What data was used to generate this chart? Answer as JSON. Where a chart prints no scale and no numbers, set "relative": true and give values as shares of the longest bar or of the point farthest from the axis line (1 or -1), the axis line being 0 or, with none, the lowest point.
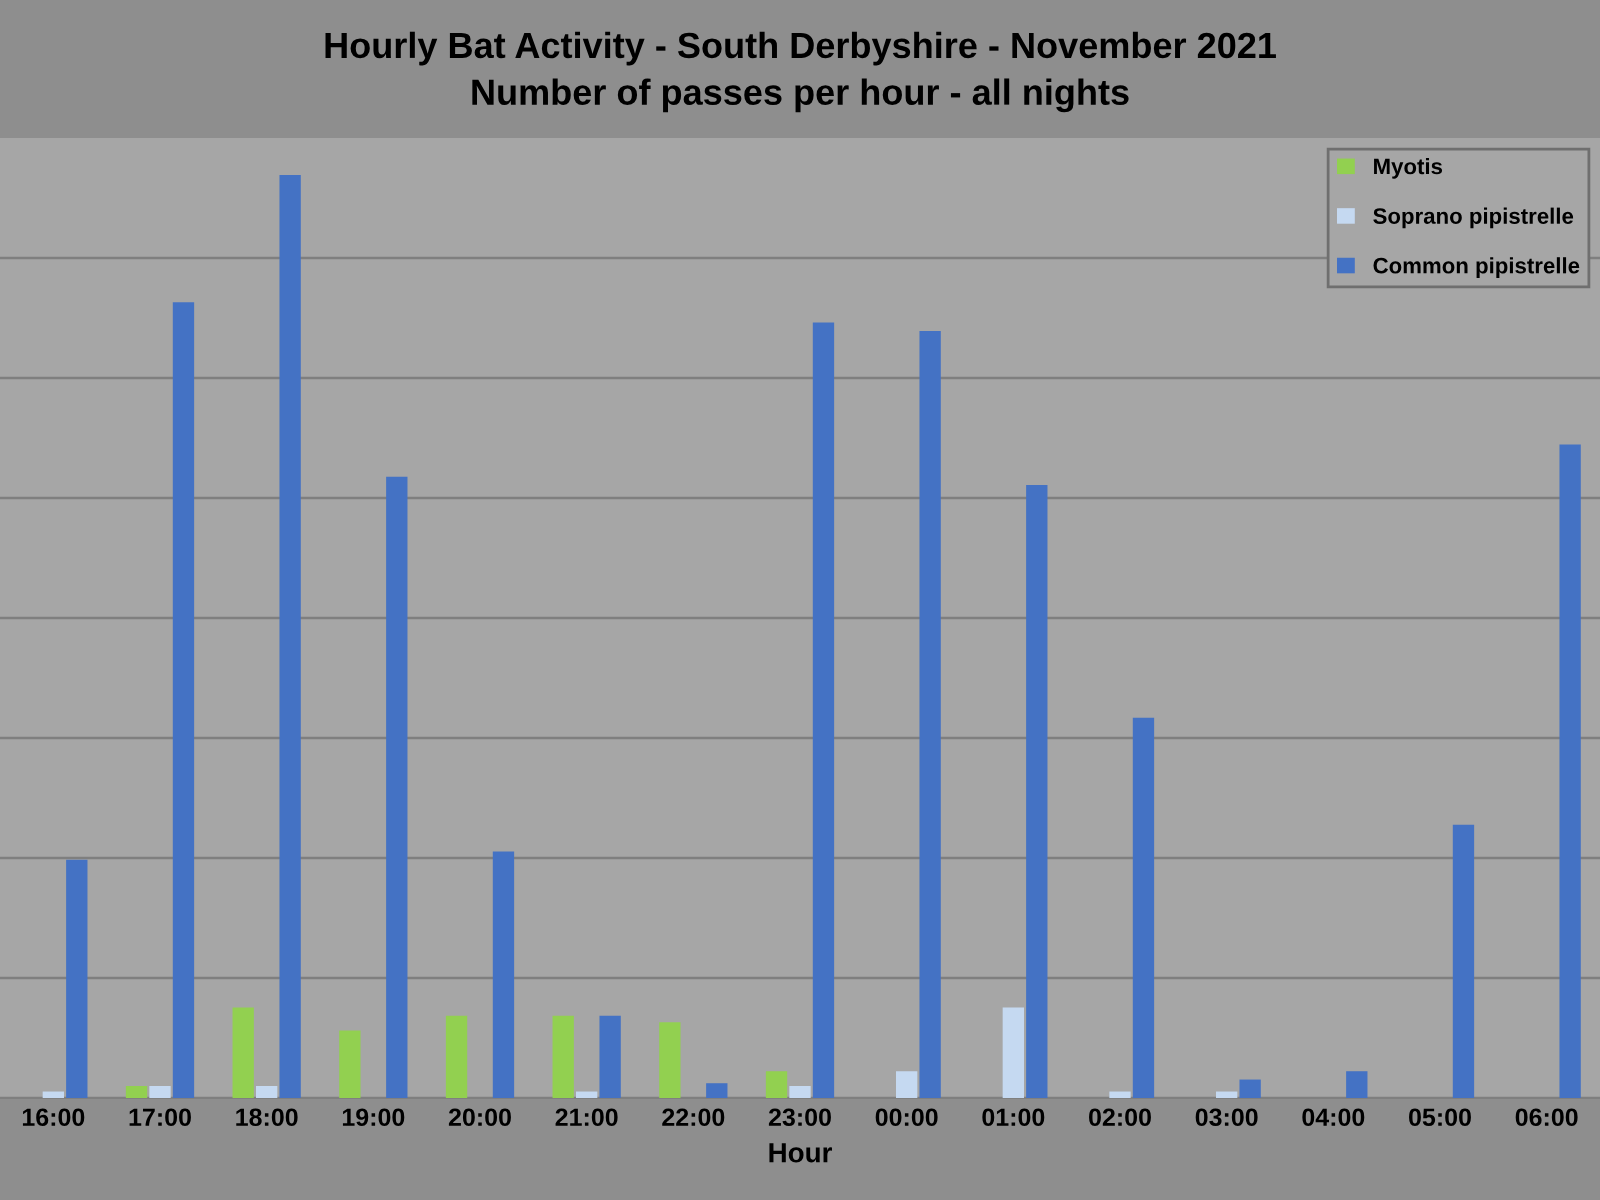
{
  "chart_data": {
    "type": "bar",
    "title": "Hourly Bat Activity - South Derbyshire - November 2021\nNumber of passes per hour - all nights",
    "xlabel": "Hour",
    "relative": true,
    "grid": "y",
    "legend": "top right",
    "categories": [
      "16:00",
      "17:00",
      "18:00",
      "19:00",
      "20:00",
      "21:00",
      "22:00",
      "23:00",
      "00:00",
      "01:00",
      "02:00",
      "03:00",
      "04:00",
      "05:00",
      "06:00"
    ],
    "series": [
      {
        "name": "Myotis",
        "color": "#92d050",
        "values": [
          0,
          0.013,
          0.098,
          0.073,
          0.089,
          0.089,
          0.082,
          0.029,
          0,
          0,
          0,
          0,
          0,
          0,
          0
        ]
      },
      {
        "name": "Soprano pipistrelle",
        "color": "#c5d9f1",
        "values": [
          0.007,
          0.013,
          0.013,
          0,
          0,
          0.007,
          0,
          0.013,
          0.029,
          0.098,
          0.007,
          0.007,
          0,
          0,
          0
        ]
      },
      {
        "name": "Common pipistrelle",
        "color": "#4472c4",
        "values": [
          0.258,
          0.862,
          1,
          0.673,
          0.267,
          0.089,
          0.016,
          0.84,
          0.831,
          0.664,
          0.412,
          0.02,
          0.029,
          0.296,
          0.708
        ]
      }
    ]
  }
}
